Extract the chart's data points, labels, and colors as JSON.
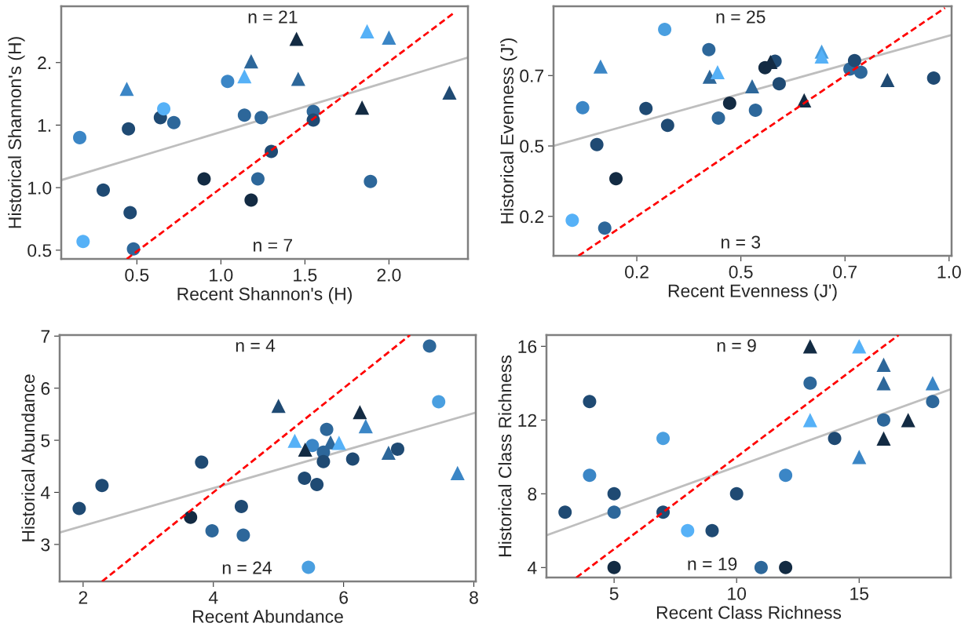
{
  "chart_data": [
    {
      "type": "scatter",
      "xlabel": "Recent Shannon's (H)",
      "ylabel": "Historical Shannon's (H)",
      "xlim": [
        0.05,
        2.47
      ],
      "ylim": [
        0.43,
        2.45
      ],
      "xticks": [
        {
          "value": 0.5,
          "label": "0.5"
        },
        {
          "value": 1.0,
          "label": "1.0"
        },
        {
          "value": 1.5,
          "label": "1.5"
        },
        {
          "value": 2.0,
          "label": "2.0"
        }
      ],
      "yticks": [
        {
          "value": 0.5,
          "label": "0.5"
        },
        {
          "value": 1.0,
          "label": "1.0"
        },
        {
          "value": 1.5,
          "label": "1."
        },
        {
          "value": 2.0,
          "label": "2."
        }
      ],
      "annotations": [
        "n = 21",
        "n = 7"
      ],
      "series": [
        {
          "marker": "circle",
          "x": [
            0.16,
            0.18,
            0.3,
            0.45,
            0.46,
            0.48,
            0.64,
            0.66,
            0.72,
            0.9,
            1.04,
            1.14,
            1.18,
            1.24,
            1.3,
            1.22,
            1.55,
            1.55,
            1.89
          ],
          "values": [
            1.4,
            0.57,
            0.98,
            1.47,
            0.8,
            0.51,
            1.56,
            1.63,
            1.52,
            1.07,
            1.85,
            1.58,
            0.9,
            1.56,
            1.29,
            1.07,
            1.61,
            1.54,
            1.05
          ],
          "colors": [
            "#3b86c6",
            "#56b1f7",
            "#1f4a73",
            "#1f4a73",
            "#1f4a73",
            "#2d679a",
            "#1f4a73",
            "#56b1f7",
            "#2d679a",
            "#132b43",
            "#3b86c6",
            "#2d679a",
            "#132b43",
            "#2d679a",
            "#1f4a73",
            "#2d679a",
            "#2d679a",
            "#1f4a73",
            "#2d679a"
          ]
        },
        {
          "marker": "triangle",
          "x": [
            0.44,
            1.18,
            1.14,
            1.45,
            1.46,
            1.87,
            2.0,
            1.84,
            2.36
          ],
          "values": [
            1.79,
            2.01,
            1.89,
            2.19,
            1.87,
            2.25,
            2.2,
            1.64,
            1.76
          ],
          "colors": [
            "#3b86c6",
            "#2d679a",
            "#56b1f7",
            "#132b43",
            "#2d679a",
            "#56b1f7",
            "#3b86c6",
            "#132b43",
            "#1f4a73"
          ]
        },
        {
          "type": "line",
          "x": [
            0.05,
            2.47
          ],
          "values": [
            1.06,
            2.04
          ],
          "color": "#bebebe"
        },
        {
          "type": "line",
          "x": [
            0.44,
            2.39
          ],
          "values": [
            0.43,
            2.4
          ],
          "color": "#ff0000",
          "line_style": "dashed"
        }
      ]
    },
    {
      "type": "scatter",
      "xlabel": "Recent Evenness (J')",
      "ylabel": "Historical Evenness (J')",
      "xlim": [
        0.05,
        1.006
      ],
      "ylim": [
        0.11,
        0.996
      ],
      "xticks": [
        {
          "value": 0.25,
          "label": "0.2"
        },
        {
          "value": 0.5,
          "label": "0.5"
        },
        {
          "value": 0.75,
          "label": "0.7"
        },
        {
          "value": 1.0,
          "label": "1.0"
        }
      ],
      "yticks": [
        {
          "value": 0.25,
          "label": "0.2"
        },
        {
          "value": 0.5,
          "label": "0.5"
        },
        {
          "value": 0.75,
          "label": "0.7"
        }
      ],
      "annotations": [
        "n = 25",
        "n = 3"
      ],
      "series": [
        {
          "marker": "circle",
          "x": [
            0.095,
            0.12,
            0.154,
            0.173,
            0.2,
            0.272,
            0.317,
            0.324,
            0.423,
            0.446,
            0.473,
            0.535,
            0.558,
            0.582,
            0.592,
            0.762,
            0.773,
            0.788,
            0.963
          ],
          "values": [
            0.236,
            0.636,
            0.505,
            0.208,
            0.384,
            0.633,
            0.914,
            0.573,
            0.842,
            0.599,
            0.652,
            0.627,
            0.778,
            0.801,
            0.721,
            0.773,
            0.803,
            0.762,
            0.741
          ],
          "colors": [
            "#56b1f7",
            "#3b86c6",
            "#1f4a73",
            "#2d679a",
            "#132b43",
            "#1f4a73",
            "#4a9fe0",
            "#1f4a73",
            "#2d679a",
            "#2d679a",
            "#132b43",
            "#2d679a",
            "#132b43",
            "#1f4a73",
            "#1f4a73",
            "#2d679a",
            "#1f4a73",
            "#2d679a",
            "#1f4a73"
          ]
        },
        {
          "marker": "triangle",
          "x": [
            0.163,
            0.425,
            0.444,
            0.527,
            0.571,
            0.652,
            0.694,
            0.694,
            0.852
          ],
          "values": [
            0.782,
            0.746,
            0.762,
            0.712,
            0.798,
            0.662,
            0.835,
            0.818,
            0.734
          ],
          "colors": [
            "#3b86c6",
            "#2d679a",
            "#56b1f7",
            "#2d679a",
            "#132b43",
            "#132b43",
            "#4a9fe0",
            "#56b1f7",
            "#1f4a73"
          ]
        },
        {
          "type": "line",
          "x": [
            0.05,
            1.006
          ],
          "values": [
            0.5,
            0.894
          ],
          "color": "#bebebe"
        },
        {
          "type": "line",
          "x": [
            0.11,
            0.99
          ],
          "values": [
            0.11,
            0.99
          ],
          "color": "#ff0000",
          "line_style": "dashed"
        }
      ]
    },
    {
      "type": "scatter",
      "xlabel": "Recent Abundance",
      "ylabel": "Historical Abundance",
      "xlim": [
        1.64,
        8.03
      ],
      "ylim": [
        2.29,
        7.02
      ],
      "xticks": [
        2,
        4,
        6,
        8
      ],
      "yticks": [
        3,
        4,
        5,
        6,
        7
      ],
      "annotations": [
        "n = 4",
        "n = 24"
      ],
      "series": [
        {
          "marker": "circle",
          "x": [
            1.94,
            2.29,
            3.65,
            3.82,
            3.98,
            4.43,
            4.46,
            5.4,
            5.46,
            5.52,
            5.59,
            5.69,
            5.69,
            5.74,
            6.14,
            6.83,
            7.32,
            7.46
          ],
          "values": [
            3.69,
            4.13,
            3.52,
            4.58,
            3.26,
            3.73,
            3.18,
            4.27,
            2.56,
            4.9,
            4.15,
            4.77,
            4.59,
            5.21,
            4.64,
            4.83,
            6.81,
            5.74
          ],
          "colors": [
            "#1f4a73",
            "#1f4a73",
            "#132b43",
            "#1f4a73",
            "#2d679a",
            "#1f4a73",
            "#2d679a",
            "#1f4a73",
            "#4a9fe0",
            "#3b86c6",
            "#1f4a73",
            "#2d679a",
            "#1f4a73",
            "#2d679a",
            "#1f4a73",
            "#1f4a73",
            "#2d679a",
            "#4a9fe0"
          ]
        },
        {
          "marker": "triangle",
          "x": [
            5.0,
            5.25,
            5.41,
            5.8,
            5.93,
            6.25,
            6.34,
            6.69,
            7.75
          ],
          "values": [
            5.66,
            4.99,
            4.82,
            4.96,
            4.95,
            5.54,
            5.27,
            4.76,
            4.37
          ],
          "colors": [
            "#1f4a73",
            "#56b1f7",
            "#132b43",
            "#2d679a",
            "#56b1f7",
            "#132b43",
            "#3b86c6",
            "#2d679a",
            "#3b86c6"
          ]
        },
        {
          "type": "line",
          "x": [
            1.64,
            8.03
          ],
          "values": [
            3.23,
            5.53
          ],
          "color": "#bebebe"
        },
        {
          "type": "line",
          "x": [
            2.29,
            7.02
          ],
          "values": [
            2.29,
            7.02
          ],
          "color": "#ff0000",
          "line_style": "dashed"
        }
      ]
    },
    {
      "type": "scatter",
      "xlabel": "Recent Class Richness",
      "ylabel": "Historical Class Richness",
      "xlim": [
        2.24,
        18.74
      ],
      "ylim": [
        3.46,
        16.61
      ],
      "xticks": [
        5,
        10,
        15
      ],
      "yticks": [
        4,
        8,
        12,
        16
      ],
      "annotations": [
        "n = 9",
        "n = 19"
      ],
      "series": [
        {
          "marker": "circle",
          "x": [
            3,
            4,
            4,
            5,
            5,
            5,
            7,
            7,
            8,
            9,
            10,
            11,
            12,
            12,
            13,
            14,
            16,
            18
          ],
          "values": [
            7,
            13,
            9,
            8,
            7,
            4,
            11,
            7,
            6,
            6,
            8,
            4,
            4,
            9,
            14,
            11,
            12,
            13
          ],
          "colors": [
            "#1f4a73",
            "#1f4a73",
            "#3b86c6",
            "#1f4a73",
            "#2d679a",
            "#132b43",
            "#4a9fe0",
            "#1f4a73",
            "#56b1f7",
            "#1f4a73",
            "#1f4a73",
            "#2d679a",
            "#132b43",
            "#3b86c6",
            "#2d679a",
            "#1f4a73",
            "#2d679a",
            "#2d679a"
          ]
        },
        {
          "marker": "triangle",
          "x": [
            13,
            15,
            16,
            16,
            18,
            13,
            17,
            16,
            15
          ],
          "values": [
            16,
            16,
            15,
            14,
            14,
            12,
            12,
            11,
            10
          ],
          "colors": [
            "#132b43",
            "#56b1f7",
            "#2d679a",
            "#2d679a",
            "#3b86c6",
            "#56b1f7",
            "#132b43",
            "#132b43",
            "#3b86c6"
          ]
        },
        {
          "type": "line",
          "x": [
            2.24,
            18.74
          ],
          "values": [
            5.75,
            13.67
          ],
          "color": "#bebebe"
        },
        {
          "type": "line",
          "x": [
            3.46,
            16.61
          ],
          "values": [
            3.46,
            16.61
          ],
          "color": "#ff0000",
          "line_style": "dashed"
        }
      ]
    }
  ]
}
